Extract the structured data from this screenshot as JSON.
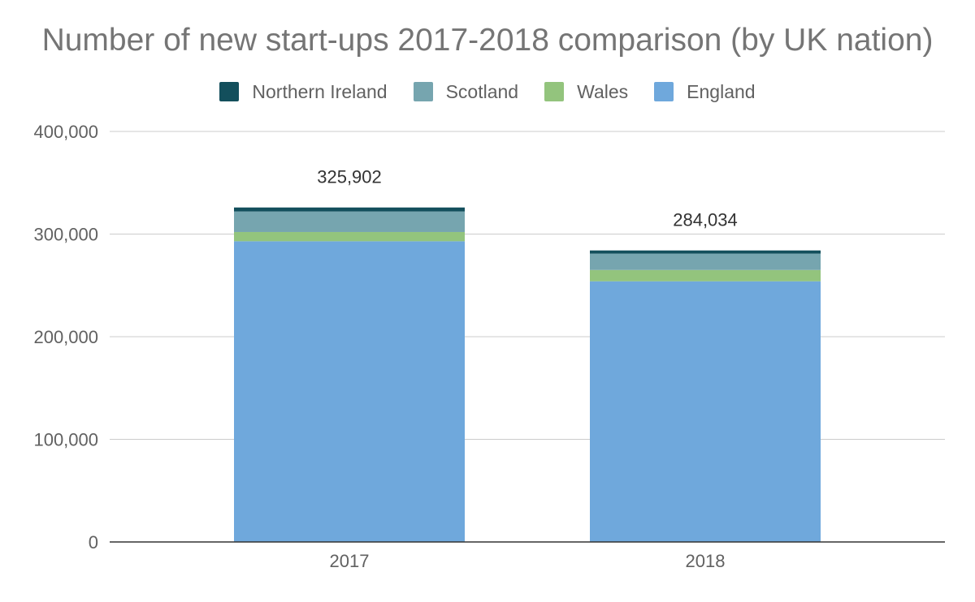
{
  "chart_data": {
    "type": "bar",
    "stacked": true,
    "title": "Number of new start-ups 2017-2018 comparison (by UK nation)",
    "xlabel": "",
    "ylabel": "",
    "categories": [
      "2017",
      "2018"
    ],
    "series": [
      {
        "name": "England",
        "color": "#6fa8dc",
        "values": [
          293000,
          254000
        ]
      },
      {
        "name": "Wales",
        "color": "#93c47d",
        "values": [
          9000,
          11000
        ]
      },
      {
        "name": "Scotland",
        "color": "#76a5af",
        "values": [
          20000,
          16000
        ]
      },
      {
        "name": "Northern Ireland",
        "color": "#134f5c",
        "values": [
          3902,
          3034
        ]
      }
    ],
    "totals": [
      "325,902",
      "284,034"
    ],
    "total_values": [
      325902,
      284034
    ],
    "legend_order": [
      "Northern Ireland",
      "Scotland",
      "Wales",
      "England"
    ],
    "ylim": [
      0,
      400000
    ],
    "yticks": [
      0,
      100000,
      200000,
      300000,
      400000
    ],
    "ytick_labels": [
      "0",
      "100,000",
      "200,000",
      "300,000",
      "400,000"
    ],
    "grid": true,
    "legend_position": "top"
  }
}
